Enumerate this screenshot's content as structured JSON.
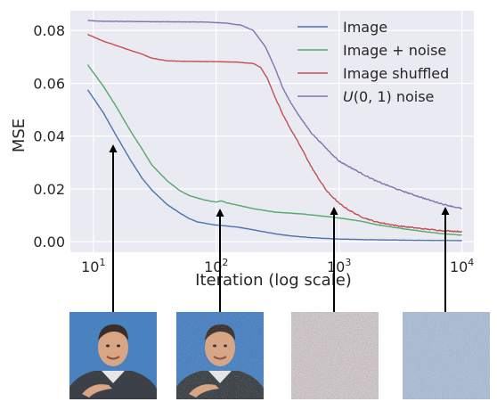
{
  "chart_data": {
    "type": "line",
    "xlabel": "Iteration (log scale)",
    "ylabel": "MSE",
    "xscale": "log",
    "xlim": [
      6.5,
      12500
    ],
    "ylim": [
      -0.004,
      0.0875
    ],
    "xticks": [
      {
        "value": 10,
        "base": "10",
        "exp": "1"
      },
      {
        "value": 100,
        "base": "10",
        "exp": "2"
      },
      {
        "value": 1000,
        "base": "10",
        "exp": "3"
      },
      {
        "value": 10000,
        "base": "10",
        "exp": "4"
      }
    ],
    "yticks": [
      {
        "value": 0.0,
        "label": "0.00"
      },
      {
        "value": 0.02,
        "label": "0.02"
      },
      {
        "value": 0.04,
        "label": "0.04"
      },
      {
        "value": 0.06,
        "label": "0.06"
      },
      {
        "value": 0.08,
        "label": "0.08"
      }
    ],
    "grid": true,
    "legend_position": "top-right",
    "series": [
      {
        "name": "Image",
        "color": "#4c72b0",
        "points": [
          [
            9,
            0.0575
          ],
          [
            12,
            0.049
          ],
          [
            15,
            0.041
          ],
          [
            20,
            0.031
          ],
          [
            25,
            0.024
          ],
          [
            30,
            0.0195
          ],
          [
            40,
            0.014
          ],
          [
            50,
            0.011
          ],
          [
            60,
            0.0088
          ],
          [
            70,
            0.0075
          ],
          [
            85,
            0.0068
          ],
          [
            100,
            0.0063
          ],
          [
            120,
            0.006
          ],
          [
            150,
            0.0055
          ],
          [
            200,
            0.0045
          ],
          [
            300,
            0.003
          ],
          [
            400,
            0.0022
          ],
          [
            600,
            0.0015
          ],
          [
            1000,
            0.001
          ],
          [
            2000,
            0.0007
          ],
          [
            5000,
            0.0005
          ],
          [
            10000,
            0.0004
          ]
        ]
      },
      {
        "name": "Image + noise",
        "color": "#55a868",
        "points": [
          [
            9,
            0.067
          ],
          [
            12,
            0.059
          ],
          [
            15,
            0.052
          ],
          [
            20,
            0.042
          ],
          [
            25,
            0.035
          ],
          [
            30,
            0.029
          ],
          [
            40,
            0.023
          ],
          [
            50,
            0.0195
          ],
          [
            60,
            0.0175
          ],
          [
            80,
            0.0158
          ],
          [
            100,
            0.015
          ],
          [
            110,
            0.0155
          ],
          [
            120,
            0.0148
          ],
          [
            150,
            0.0138
          ],
          [
            200,
            0.0125
          ],
          [
            300,
            0.0112
          ],
          [
            500,
            0.0105
          ],
          [
            700,
            0.0098
          ],
          [
            1000,
            0.009
          ],
          [
            1500,
            0.0078
          ],
          [
            2000,
            0.0065
          ],
          [
            3000,
            0.0052
          ],
          [
            5000,
            0.0038
          ],
          [
            7000,
            0.003
          ],
          [
            10000,
            0.0025
          ]
        ]
      },
      {
        "name": "Image shuffled",
        "color": "#c44e52",
        "points": [
          [
            9,
            0.0785
          ],
          [
            12,
            0.076
          ],
          [
            15,
            0.0745
          ],
          [
            20,
            0.0725
          ],
          [
            25,
            0.071
          ],
          [
            30,
            0.0695
          ],
          [
            40,
            0.0685
          ],
          [
            60,
            0.0683
          ],
          [
            100,
            0.0682
          ],
          [
            150,
            0.068
          ],
          [
            200,
            0.0675
          ],
          [
            230,
            0.066
          ],
          [
            260,
            0.062
          ],
          [
            300,
            0.055
          ],
          [
            350,
            0.048
          ],
          [
            400,
            0.043
          ],
          [
            500,
            0.035
          ],
          [
            600,
            0.028
          ],
          [
            700,
            0.023
          ],
          [
            800,
            0.019
          ],
          [
            1000,
            0.0145
          ],
          [
            1200,
            0.012
          ],
          [
            1500,
            0.0095
          ],
          [
            2000,
            0.0075
          ],
          [
            3000,
            0.006
          ],
          [
            5000,
            0.0048
          ],
          [
            7000,
            0.0042
          ],
          [
            10000,
            0.0038
          ]
        ]
      },
      {
        "name": "U(0,1) noise",
        "name_var": "U",
        "name_args": "(0, 1)",
        "name_rest": " noise",
        "color": "#8172b2",
        "points": [
          [
            9,
            0.0838
          ],
          [
            12,
            0.0835
          ],
          [
            20,
            0.0834
          ],
          [
            40,
            0.0833
          ],
          [
            80,
            0.0832
          ],
          [
            120,
            0.0828
          ],
          [
            160,
            0.082
          ],
          [
            200,
            0.08
          ],
          [
            250,
            0.074
          ],
          [
            300,
            0.066
          ],
          [
            350,
            0.058
          ],
          [
            400,
            0.053
          ],
          [
            500,
            0.046
          ],
          [
            600,
            0.041
          ],
          [
            800,
            0.035
          ],
          [
            1000,
            0.0305
          ],
          [
            1500,
            0.026
          ],
          [
            2000,
            0.023
          ],
          [
            3000,
            0.0198
          ],
          [
            4000,
            0.0178
          ],
          [
            5000,
            0.0163
          ],
          [
            7000,
            0.0142
          ],
          [
            10000,
            0.0125
          ]
        ]
      }
    ]
  },
  "arrows": [
    {
      "name": "arrow-image",
      "target": "thumb-image",
      "series": "Image"
    },
    {
      "name": "arrow-image-noise",
      "target": "thumb-image-noise",
      "series": "Image + noise"
    },
    {
      "name": "arrow-image-shuffled",
      "target": "thumb-image-shuffled",
      "series": "Image shuffled"
    },
    {
      "name": "arrow-uniform-noise",
      "target": "thumb-uniform-noise",
      "series": "U(0,1) noise"
    }
  ],
  "colors": {
    "plot_background": "#eaeaf2",
    "grid": "#ffffff",
    "portrait_background": "#4a82c0",
    "jacket": "#3b4146",
    "skin": "#d8a585",
    "hair": "#3a2e2a"
  }
}
